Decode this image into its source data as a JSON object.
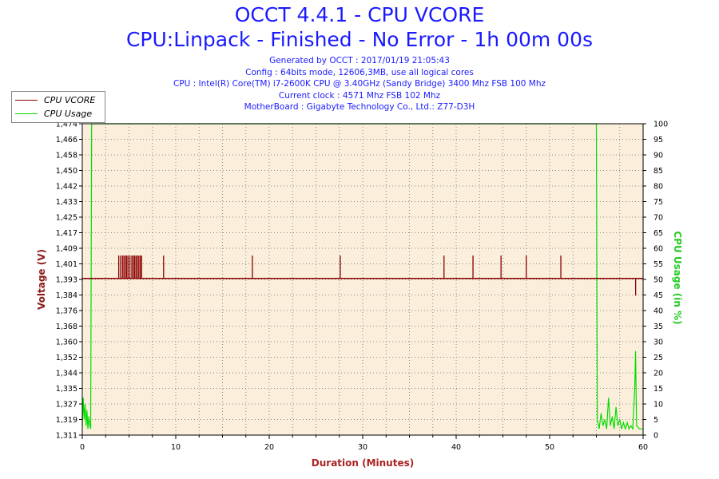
{
  "titles": {
    "main": "OCCT 4.4.1 - CPU VCORE",
    "sub": "CPU:Linpack - Finished - No Error - 1h 00m 00s"
  },
  "info_lines": [
    "Generated by OCCT : 2017/01/19 21:05:43",
    "Config : 64bits mode, 12606,3MB, use all logical cores",
    "CPU : Intel(R) Core(TM) i7-2600K CPU @ 3.40GHz (Sandy Bridge) 3400 Mhz FSB 100 Mhz",
    "Current clock : 4571 Mhz FSB 102 Mhz",
    "MotherBoard : Gigabyte Technology Co., Ltd.: Z77-D3H"
  ],
  "colors": {
    "vcore": "#8b0000",
    "usage": "#00dd00",
    "plot_bg": "#fbefdc",
    "grid": "#888888",
    "axis_label_left": "#8b1a1a",
    "axis_label_right": "#22cc22",
    "xlabel": "#aa2222",
    "title": "#1a1aff"
  },
  "chart_data": {
    "type": "line",
    "xlabel": "Duration (Minutes)",
    "ylabel": "Voltage (V)",
    "y2label": "CPU Usage (in %)",
    "xlim": [
      0,
      60
    ],
    "ylim": [
      1.311,
      1.474
    ],
    "y2lim": [
      0,
      100
    ],
    "x_ticks": [
      0,
      10,
      20,
      30,
      40,
      50,
      60
    ],
    "y_ticks": [
      "1,311",
      "1,319",
      "1,327",
      "1,335",
      "1,344",
      "1,352",
      "1,360",
      "1,368",
      "1,376",
      "1,384",
      "1,393",
      "1,401",
      "1,409",
      "1,417",
      "1,425",
      "1,433",
      "1,442",
      "1,450",
      "1,458",
      "1,466",
      "1,474"
    ],
    "y2_ticks": [
      0,
      5,
      10,
      15,
      20,
      25,
      30,
      35,
      40,
      45,
      50,
      55,
      60,
      65,
      70,
      75,
      80,
      85,
      90,
      95,
      100
    ],
    "grid": true,
    "legend_position": "top-left",
    "series": [
      {
        "name": "CPU VCORE",
        "axis": "left",
        "baseline": 1.393,
        "spike_value": 1.405,
        "spikes": [
          3.9,
          4.1,
          4.3,
          4.45,
          4.6,
          4.75,
          4.9,
          5.1,
          5.3,
          5.45,
          5.6,
          5.75,
          5.9,
          6.05,
          6.2,
          6.35,
          8.7,
          18.2,
          27.6,
          38.7,
          41.8,
          44.8,
          47.5,
          51.2
        ],
        "dips": [
          [
            59.2,
            1.384
          ]
        ]
      },
      {
        "name": "CPU Usage",
        "axis": "right",
        "points": [
          [
            0,
            3
          ],
          [
            0.1,
            12
          ],
          [
            0.2,
            5
          ],
          [
            0.3,
            10
          ],
          [
            0.4,
            3
          ],
          [
            0.5,
            8
          ],
          [
            0.6,
            2
          ],
          [
            0.7,
            6
          ],
          [
            0.8,
            3
          ],
          [
            0.9,
            2
          ],
          [
            1,
            100
          ],
          [
            55,
            100
          ],
          [
            55.1,
            5
          ],
          [
            55.3,
            2
          ],
          [
            55.5,
            7
          ],
          [
            55.7,
            3
          ],
          [
            55.9,
            5
          ],
          [
            56.1,
            2
          ],
          [
            56.3,
            12
          ],
          [
            56.5,
            3
          ],
          [
            56.7,
            6
          ],
          [
            56.9,
            2
          ],
          [
            57.1,
            9
          ],
          [
            57.3,
            3
          ],
          [
            57.5,
            5
          ],
          [
            57.7,
            2
          ],
          [
            57.9,
            4
          ],
          [
            58.1,
            2
          ],
          [
            58.3,
            4
          ],
          [
            58.5,
            2
          ],
          [
            58.7,
            3
          ],
          [
            58.9,
            2
          ],
          [
            59.1,
            15
          ],
          [
            59.2,
            27
          ],
          [
            59.3,
            3
          ],
          [
            59.6,
            2
          ],
          [
            60,
            2
          ]
        ]
      }
    ]
  }
}
